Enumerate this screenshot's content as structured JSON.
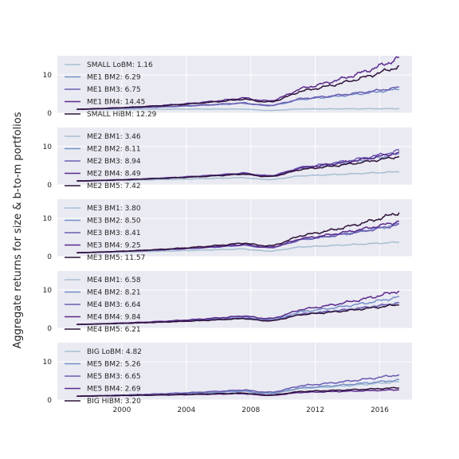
{
  "figure": {
    "ylabel": "Aggregate returns for size & b-to-m portfolios",
    "background": "#eaeaf2",
    "grid_color": "#ffffff",
    "series_colors": [
      "#a6bfd2",
      "#7690c8",
      "#6a5cb3",
      "#5a2a8c",
      "#2d1238"
    ]
  },
  "chart_data": [
    {
      "type": "line",
      "x_range": [
        1996.0,
        2018.0
      ],
      "ylim": [
        0,
        15
      ],
      "yticks": [
        0,
        10
      ],
      "xticks": [
        2000,
        2004,
        2008,
        2012,
        2016
      ],
      "xticklabels_visible": false,
      "grid": true,
      "legend_position": "upper-left",
      "series": [
        {
          "name": "SMALL LoBM: 1.16",
          "final": 1.16
        },
        {
          "name": "ME1 BM2: 6.29",
          "final": 6.29
        },
        {
          "name": "ME1 BM3: 6.75",
          "final": 6.75
        },
        {
          "name": "ME1 BM4: 14.45",
          "final": 14.45
        },
        {
          "name": "SMALL HiBM: 12.29",
          "final": 12.29
        }
      ]
    },
    {
      "type": "line",
      "x_range": [
        1996.0,
        2018.0
      ],
      "ylim": [
        0,
        15
      ],
      "yticks": [
        0,
        10
      ],
      "xticks": [
        2000,
        2004,
        2008,
        2012,
        2016
      ],
      "xticklabels_visible": false,
      "grid": true,
      "legend_position": "upper-left",
      "series": [
        {
          "name": "ME2 BM1: 3.46",
          "final": 3.46
        },
        {
          "name": "ME2 BM2: 8.11",
          "final": 8.11
        },
        {
          "name": "ME2 BM3: 8.94",
          "final": 8.94
        },
        {
          "name": "ME2 BM4: 8.49",
          "final": 8.49
        },
        {
          "name": "ME2 BM5: 7.42",
          "final": 7.42
        }
      ]
    },
    {
      "type": "line",
      "x_range": [
        1996.0,
        2018.0
      ],
      "ylim": [
        0,
        15
      ],
      "yticks": [
        0,
        10
      ],
      "xticks": [
        2000,
        2004,
        2008,
        2012,
        2016
      ],
      "xticklabels_visible": false,
      "grid": true,
      "legend_position": "upper-left",
      "series": [
        {
          "name": "ME3 BM1: 3.80",
          "final": 3.8
        },
        {
          "name": "ME3 BM2: 8.50",
          "final": 8.5
        },
        {
          "name": "ME3 BM3: 8.41",
          "final": 8.41
        },
        {
          "name": "ME3 BM4: 9.25",
          "final": 9.25
        },
        {
          "name": "ME3 BM5: 11.57",
          "final": 11.57
        }
      ]
    },
    {
      "type": "line",
      "x_range": [
        1996.0,
        2018.0
      ],
      "ylim": [
        0,
        15
      ],
      "yticks": [
        0,
        10
      ],
      "xticks": [
        2000,
        2004,
        2008,
        2012,
        2016
      ],
      "xticklabels_visible": false,
      "grid": true,
      "legend_position": "upper-left",
      "series": [
        {
          "name": "ME4 BM1: 6.58",
          "final": 6.58
        },
        {
          "name": "ME4 BM2: 8.21",
          "final": 8.21
        },
        {
          "name": "ME4 BM3: 6.64",
          "final": 6.64
        },
        {
          "name": "ME4 BM4: 9.84",
          "final": 9.84
        },
        {
          "name": "ME4 BM5: 6.21",
          "final": 6.21
        }
      ]
    },
    {
      "type": "line",
      "x_range": [
        1996.0,
        2018.0
      ],
      "ylim": [
        0,
        15
      ],
      "yticks": [
        0,
        10
      ],
      "xticks": [
        2000,
        2004,
        2008,
        2012,
        2016
      ],
      "xticklabels": [
        "2000",
        "2004",
        "2008",
        "2012",
        "2016"
      ],
      "xticklabels_visible": true,
      "grid": true,
      "legend_position": "upper-left",
      "series": [
        {
          "name": "BIG LoBM: 4.82",
          "final": 4.82
        },
        {
          "name": "ME5 BM2: 5.26",
          "final": 5.26
        },
        {
          "name": "ME5 BM3: 6.65",
          "final": 6.65
        },
        {
          "name": "ME5 BM4: 2.69",
          "final": 2.69
        },
        {
          "name": "BIG HiBM: 3.20",
          "final": 3.2
        }
      ]
    }
  ]
}
